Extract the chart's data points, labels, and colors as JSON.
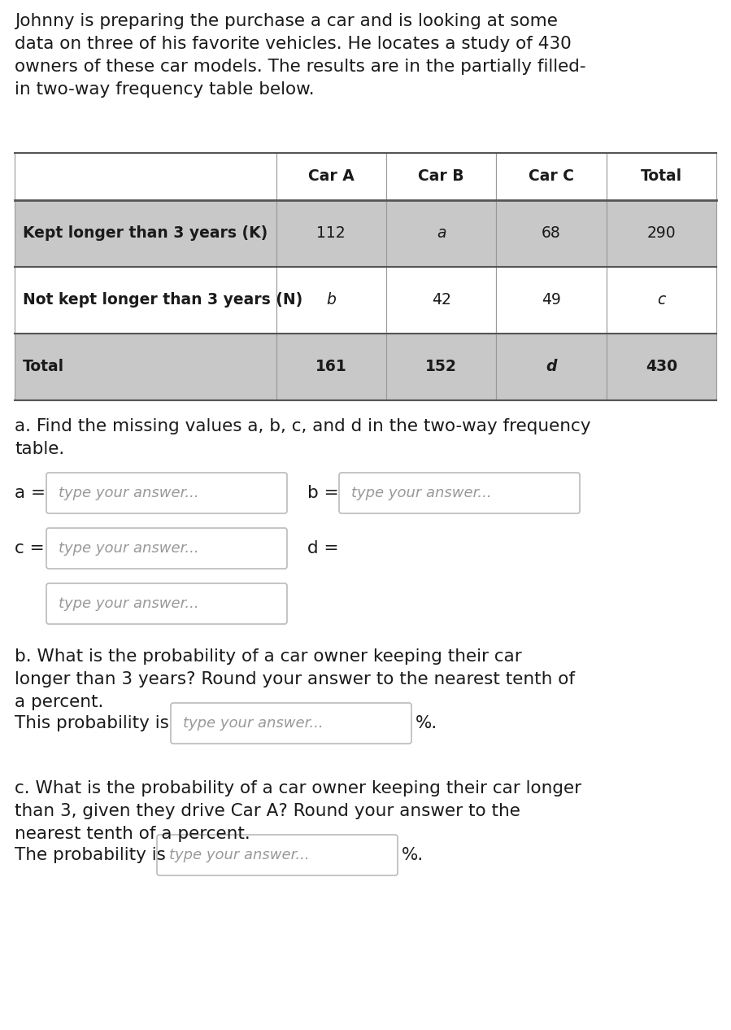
{
  "intro_text": "Johnny is preparing the purchase a car and is looking at some\ndata on three of his favorite vehicles. He locates a study of 430\nowners of these car models. The results are in the partially filled-\nin two-way frequency table below.",
  "table": {
    "col_headers": [
      "",
      "Car A",
      "Car B",
      "Car C",
      "Total"
    ],
    "rows": [
      [
        "Kept longer than 3 years (K)",
        "112",
        "a",
        "68",
        "290"
      ],
      [
        "Not kept longer than 3 years (N)",
        "b",
        "42",
        "49",
        "c"
      ],
      [
        "Total",
        "161",
        "152",
        "d",
        "430"
      ]
    ],
    "header_bg": "#ffffff",
    "row0_label_bg": "#c8c8c8",
    "row0_data_bg": "#c8c8c8",
    "row1_label_bg": "#ffffff",
    "row1_data_bg": "#ffffff",
    "row2_label_bg": "#c8c8c8",
    "row2_data_bg": "#c8c8c8",
    "border_color": "#999999",
    "thick_border_color": "#555555"
  },
  "part_a_label": "a. Find the missing values a, b, c, and d in the two-way frequency\ntable.",
  "part_b_label": "b. What is the probability of a car owner keeping their car\nlonger than 3 years? Round your answer to the nearest tenth of\na percent.",
  "part_b_line": "This probability is",
  "part_c_label": "c. What is the probability of a car owner keeping their car longer\nthan 3, given they drive Car A? Round your answer to the\nnearest tenth of a percent.",
  "part_c_line": "The probability is",
  "placeholder": "type your answer...",
  "suffix": "%.",
  "bg_color": "#ffffff",
  "text_color": "#1a1a1a",
  "label_color": "#555555",
  "placeholder_color": "#999999",
  "box_border_color": "#bbbbbb",
  "font_size_intro": 15.5,
  "font_size_body": 15.5,
  "font_size_table_header": 13.5,
  "font_size_table_data": 13.5,
  "font_size_placeholder": 13.0
}
